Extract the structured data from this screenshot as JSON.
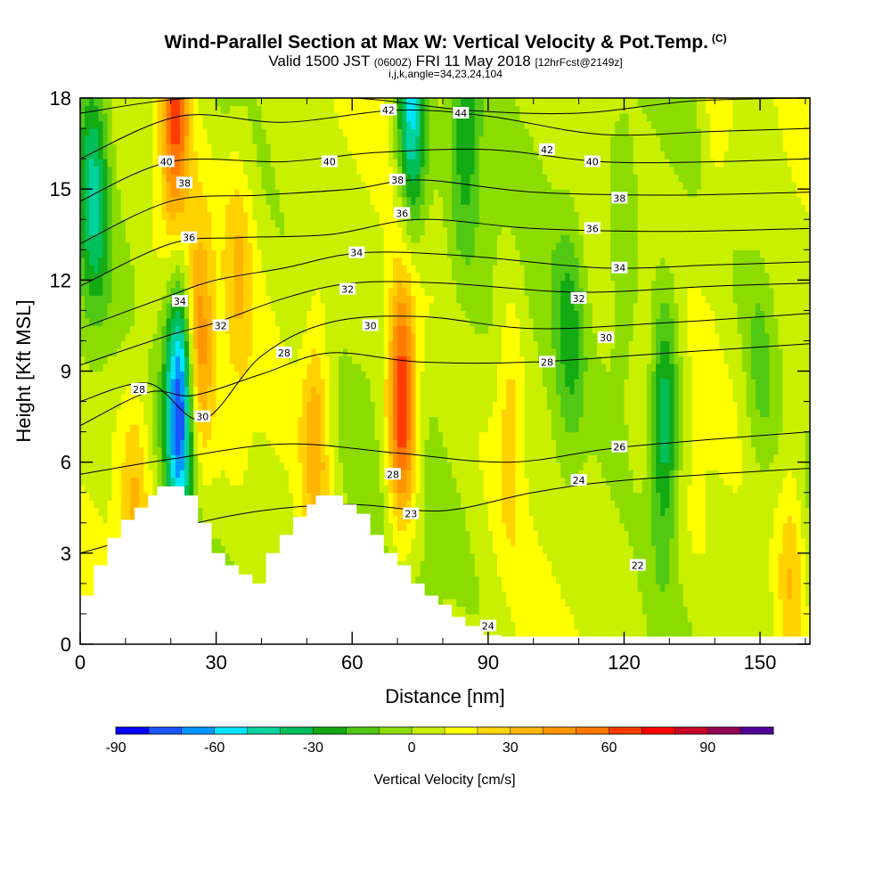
{
  "chart_data": {
    "type": "heatmap",
    "title": "Wind-Parallel Section at Max W: Vertical Velocity & Pot.Temp.",
    "title_mark": "(C)",
    "subtitle_main": "Valid 1500 JST",
    "subtitle_z": "(0600Z)",
    "subtitle_date": "FRI 11 May 2018",
    "subtitle_fcst": "[12hrFcst@2149z]",
    "subtitle2": "i,j,k,angle=34,23,24,104",
    "xlabel": "Distance [nm]",
    "ylabel": "Height [Kft MSL]",
    "xlim": [
      0,
      161
    ],
    "ylim": [
      0,
      18
    ],
    "x_ticks": [
      "0",
      "30",
      "60",
      "90",
      "120",
      "150"
    ],
    "y_ticks": [
      "0",
      "3",
      "6",
      "9",
      "12",
      "15",
      "18"
    ],
    "colorbar": {
      "label": "Vertical Velocity [cm/s]",
      "range": [
        -90,
        110
      ],
      "step": 10,
      "tick_labels": [
        "-90",
        "-60",
        "-30",
        "0",
        "30",
        "60",
        "90"
      ],
      "colors": [
        "#0000ff",
        "#1a55ff",
        "#0096ff",
        "#00e6ff",
        "#00d2a0",
        "#00be5a",
        "#14aa14",
        "#50c814",
        "#8cdc00",
        "#c8f000",
        "#ffff00",
        "#ffd200",
        "#ffb400",
        "#ff9600",
        "#ff7800",
        "#ff3c00",
        "#ff0000",
        "#c80028",
        "#960050",
        "#500096"
      ]
    },
    "velocity_features": [
      {
        "x": 22,
        "y": 8.0,
        "w": -88,
        "note": "downdraft core"
      },
      {
        "x": 21,
        "y": 17.5,
        "w": 60,
        "note": "updraft top"
      },
      {
        "x": 26,
        "y": 10.0,
        "w": 42
      },
      {
        "x": 71,
        "y": 8.0,
        "w": 72,
        "note": "updraft core"
      },
      {
        "x": 73,
        "y": 17.5,
        "w": -58
      },
      {
        "x": 3,
        "y": 15.0,
        "w": -38
      },
      {
        "x": 52,
        "y": 7.0,
        "w": 32
      },
      {
        "x": 129,
        "y": 7.3,
        "w": -48
      },
      {
        "x": 108,
        "y": 10.0,
        "w": -22
      },
      {
        "x": 120,
        "y": 12.0,
        "w": -18
      },
      {
        "x": 150,
        "y": 9.0,
        "w": -14
      },
      {
        "x": 95,
        "y": 8.0,
        "w": 22
      },
      {
        "x": 157,
        "y": 2.5,
        "w": 25
      },
      {
        "x": 12,
        "y": 5.0,
        "w": 22
      },
      {
        "x": 35,
        "y": 12.5,
        "w": 20
      },
      {
        "x": 85,
        "y": 17.0,
        "w": -28
      },
      {
        "x": 140,
        "y": 17.0,
        "w": 12
      }
    ],
    "isentropes": [
      {
        "theta": 24,
        "pts": [
          [
            0,
            3.0
          ],
          [
            20,
            3.8
          ],
          [
            40,
            4.4
          ],
          [
            60,
            4.6
          ],
          [
            80,
            4.4
          ],
          [
            100,
            5.0
          ],
          [
            120,
            5.4
          ],
          [
            161,
            5.8
          ]
        ]
      },
      {
        "theta": 26,
        "pts": [
          [
            0,
            5.6
          ],
          [
            20,
            6.1
          ],
          [
            45,
            6.6
          ],
          [
            70,
            6.3
          ],
          [
            95,
            6.0
          ],
          [
            120,
            6.5
          ],
          [
            161,
            7.0
          ]
        ]
      },
      {
        "theta": 28,
        "pts": [
          [
            0,
            7.2
          ],
          [
            15,
            8.3
          ],
          [
            25,
            8.2
          ],
          [
            40,
            8.9
          ],
          [
            55,
            9.6
          ],
          [
            75,
            9.3
          ],
          [
            100,
            9.3
          ],
          [
            130,
            9.6
          ],
          [
            161,
            9.9
          ]
        ]
      },
      {
        "theta": 30,
        "pts": [
          [
            0,
            8.0
          ],
          [
            15,
            8.6
          ],
          [
            27,
            7.4
          ],
          [
            40,
            9.5
          ],
          [
            55,
            10.6
          ],
          [
            75,
            10.8
          ],
          [
            100,
            10.4
          ],
          [
            130,
            10.6
          ],
          [
            161,
            10.9
          ]
        ]
      },
      {
        "theta": 32,
        "pts": [
          [
            0,
            9.2
          ],
          [
            20,
            10.2
          ],
          [
            30,
            10.6
          ],
          [
            45,
            11.4
          ],
          [
            60,
            11.9
          ],
          [
            80,
            11.9
          ],
          [
            110,
            11.6
          ],
          [
            140,
            11.8
          ],
          [
            161,
            11.9
          ]
        ]
      },
      {
        "theta": 34,
        "pts": [
          [
            0,
            10.4
          ],
          [
            20,
            11.5
          ],
          [
            30,
            12.0
          ],
          [
            45,
            12.4
          ],
          [
            62,
            12.9
          ],
          [
            85,
            12.8
          ],
          [
            115,
            12.4
          ],
          [
            140,
            12.5
          ],
          [
            161,
            12.6
          ]
        ]
      },
      {
        "theta": 36,
        "pts": [
          [
            0,
            11.8
          ],
          [
            20,
            13.2
          ],
          [
            35,
            13.4
          ],
          [
            55,
            13.5
          ],
          [
            75,
            14.0
          ],
          [
            100,
            13.7
          ],
          [
            130,
            13.6
          ],
          [
            161,
            13.7
          ]
        ]
      },
      {
        "theta": 38,
        "pts": [
          [
            0,
            13.2
          ],
          [
            20,
            14.6
          ],
          [
            40,
            14.8
          ],
          [
            60,
            15.0
          ],
          [
            75,
            15.3
          ],
          [
            100,
            14.9
          ],
          [
            130,
            14.8
          ],
          [
            161,
            14.9
          ]
        ]
      },
      {
        "theta": 40,
        "pts": [
          [
            0,
            14.6
          ],
          [
            20,
            15.9
          ],
          [
            45,
            15.9
          ],
          [
            65,
            16.2
          ],
          [
            90,
            16.3
          ],
          [
            115,
            15.9
          ],
          [
            140,
            15.9
          ],
          [
            161,
            16.0
          ]
        ]
      },
      {
        "theta": 42,
        "pts": [
          [
            0,
            16.0
          ],
          [
            22,
            17.4
          ],
          [
            45,
            17.2
          ],
          [
            70,
            17.6
          ],
          [
            90,
            17.4
          ],
          [
            115,
            16.8
          ],
          [
            140,
            16.9
          ],
          [
            161,
            17.0
          ]
        ]
      },
      {
        "theta": 44,
        "pts": [
          [
            0,
            17.5
          ],
          [
            25,
            18.0
          ],
          [
            60,
            18.0
          ],
          [
            85,
            17.6
          ],
          [
            110,
            17.5
          ],
          [
            135,
            17.9
          ],
          [
            161,
            18.0
          ]
        ]
      }
    ],
    "contour_labels": [
      {
        "text": "44",
        "x": 84,
        "y": 17.5
      },
      {
        "text": "42",
        "x": 68,
        "y": 17.6
      },
      {
        "text": "42",
        "x": 103,
        "y": 16.3
      },
      {
        "text": "40",
        "x": 19,
        "y": 15.9
      },
      {
        "text": "40",
        "x": 55,
        "y": 15.9
      },
      {
        "text": "40",
        "x": 113,
        "y": 15.9
      },
      {
        "text": "38",
        "x": 23,
        "y": 15.2
      },
      {
        "text": "38",
        "x": 70,
        "y": 15.3
      },
      {
        "text": "38",
        "x": 119,
        "y": 14.7
      },
      {
        "text": "36",
        "x": 24,
        "y": 13.4
      },
      {
        "text": "36",
        "x": 71,
        "y": 14.2
      },
      {
        "text": "36",
        "x": 113,
        "y": 13.7
      },
      {
        "text": "34",
        "x": 61,
        "y": 12.9
      },
      {
        "text": "34",
        "x": 119,
        "y": 12.4
      },
      {
        "text": "34",
        "x": 22,
        "y": 11.3
      },
      {
        "text": "32",
        "x": 59,
        "y": 11.7
      },
      {
        "text": "32",
        "x": 110,
        "y": 11.4
      },
      {
        "text": "32",
        "x": 31,
        "y": 10.5
      },
      {
        "text": "30",
        "x": 64,
        "y": 10.5
      },
      {
        "text": "30",
        "x": 116,
        "y": 10.1
      },
      {
        "text": "30",
        "x": 27,
        "y": 7.5
      },
      {
        "text": "28",
        "x": 13,
        "y": 8.4
      },
      {
        "text": "28",
        "x": 45,
        "y": 9.6
      },
      {
        "text": "28",
        "x": 103,
        "y": 9.3
      },
      {
        "text": "28",
        "x": 69,
        "y": 5.6
      },
      {
        "text": "26",
        "x": 119,
        "y": 6.5
      },
      {
        "text": "24",
        "x": 110,
        "y": 5.4
      },
      {
        "text": "24",
        "x": 90,
        "y": 0.6
      },
      {
        "text": "23",
        "x": 73,
        "y": 4.3
      },
      {
        "text": "22",
        "x": 123,
        "y": 2.6
      }
    ],
    "terrain": [
      [
        0,
        1.6
      ],
      [
        3,
        1.6
      ],
      [
        3,
        2.6
      ],
      [
        6,
        2.6
      ],
      [
        6,
        3.5
      ],
      [
        9,
        3.5
      ],
      [
        9,
        4.1
      ],
      [
        12,
        4.1
      ],
      [
        12,
        4.5
      ],
      [
        15,
        4.5
      ],
      [
        15,
        4.9
      ],
      [
        17,
        4.9
      ],
      [
        17,
        5.2
      ],
      [
        23,
        5.2
      ],
      [
        23,
        4.9
      ],
      [
        26,
        4.9
      ],
      [
        26,
        4.0
      ],
      [
        29,
        4.0
      ],
      [
        29,
        3.0
      ],
      [
        32,
        3.0
      ],
      [
        32,
        2.6
      ],
      [
        35,
        2.6
      ],
      [
        35,
        2.3
      ],
      [
        38,
        2.3
      ],
      [
        38,
        2.0
      ],
      [
        41,
        2.0
      ],
      [
        41,
        3.0
      ],
      [
        44,
        3.0
      ],
      [
        44,
        3.6
      ],
      [
        47,
        3.6
      ],
      [
        47,
        4.2
      ],
      [
        50,
        4.2
      ],
      [
        50,
        4.6
      ],
      [
        52,
        4.6
      ],
      [
        52,
        4.9
      ],
      [
        58,
        4.9
      ],
      [
        58,
        4.6
      ],
      [
        61,
        4.6
      ],
      [
        61,
        4.3
      ],
      [
        64,
        4.3
      ],
      [
        64,
        3.6
      ],
      [
        67,
        3.6
      ],
      [
        67,
        3.0
      ],
      [
        70,
        3.0
      ],
      [
        70,
        2.6
      ],
      [
        73,
        2.6
      ],
      [
        73,
        2.0
      ],
      [
        76,
        2.0
      ],
      [
        76,
        1.6
      ],
      [
        79,
        1.6
      ],
      [
        79,
        1.3
      ],
      [
        82,
        1.3
      ],
      [
        82,
        0.9
      ],
      [
        85,
        0.9
      ],
      [
        85,
        0.6
      ],
      [
        89,
        0.6
      ],
      [
        89,
        0.3
      ],
      [
        93,
        0.3
      ],
      [
        93,
        0
      ]
    ]
  }
}
